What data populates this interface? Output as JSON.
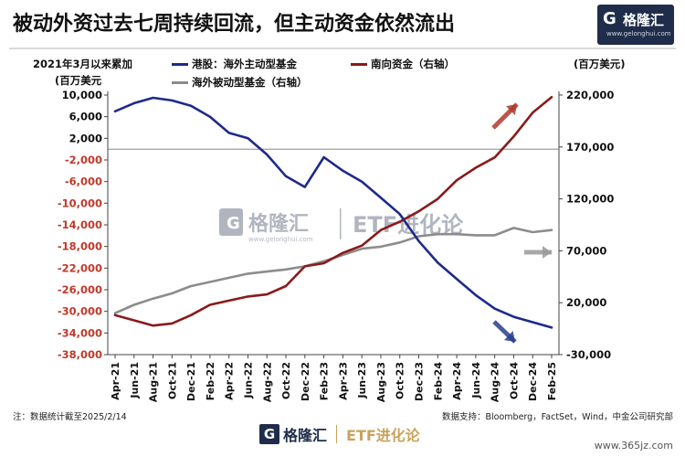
{
  "title": "被动外资过去七周持续回流，但主动资金依然流出",
  "logo": {
    "name": "格隆汇",
    "url": "www.gelonghui.com"
  },
  "left_unit": "(百万美元",
  "right_unit": "(百万美元)",
  "left_header": "2021年3月以来累加",
  "watermark": {
    "brand": "格隆汇",
    "url": "www.gelonghui.com",
    "text": "ETF进化论"
  },
  "bottom_logo": {
    "brand": "格隆汇",
    "text": "ETF进化论"
  },
  "note_left": "注：数据统计截至2025/2/14",
  "note_right": "数据支持：Bloomberg，FactSet，Wind，中金公司研究部",
  "site_watermark": "www.365jz.com",
  "colors": {
    "hk_active": "#1d2a8a",
    "southbound": "#8b1a1a",
    "passive": "#8c8c8c",
    "arrow_red": "#b03a2e",
    "arrow_blue": "#2a3f8f",
    "arrow_gray": "#9a9a9a"
  },
  "chart_data": {
    "type": "line",
    "x": [
      "Apr-21",
      "Jun-21",
      "Aug-21",
      "Oct-21",
      "Dec-21",
      "Feb-22",
      "Apr-22",
      "Jun-22",
      "Aug-22",
      "Oct-22",
      "Dec-22",
      "Feb-23",
      "Apr-23",
      "Jun-23",
      "Aug-23",
      "Oct-23",
      "Dec-23",
      "Feb-24",
      "Apr-24",
      "Jun-24",
      "Aug-24",
      "Oct-24",
      "Dec-24",
      "Feb-25"
    ],
    "left_axis": {
      "ylim": [
        -38000,
        10000
      ],
      "ticks": [
        10000,
        6000,
        2000,
        -2000,
        -6000,
        -10000,
        -14000,
        -18000,
        -22000,
        -26000,
        -30000,
        -34000,
        -38000
      ],
      "tick_labels": [
        "10,000",
        "6,000",
        "2,000",
        "-2,000",
        "-6,000",
        "-10,000",
        "-14,000",
        "-18,000",
        "-22,000",
        "-26,000",
        "-30,000",
        "-34,000",
        "-38,000"
      ]
    },
    "right_axis": {
      "ylim": [
        -30000,
        220000
      ],
      "ticks": [
        220000,
        170000,
        120000,
        70000,
        20000,
        -30000
      ],
      "tick_labels": [
        "220,000",
        "170,000",
        "120,000",
        "70,000",
        "20,000",
        "-30,000"
      ]
    },
    "series": [
      {
        "name": "港股：海外主动型基金",
        "axis": "left",
        "values": [
          7000,
          8500,
          9500,
          9000,
          8000,
          6000,
          3000,
          2000,
          -1000,
          -5000,
          -7000,
          -1500,
          -4000,
          -6000,
          -9000,
          -12000,
          -17000,
          -21000,
          -24000,
          -27000,
          -29500,
          -31000,
          -32000,
          -33000
        ]
      },
      {
        "name": "南向资金（右轴）",
        "axis": "right",
        "values": [
          8000,
          3000,
          -2000,
          0,
          8000,
          18000,
          22000,
          26000,
          28000,
          36000,
          55000,
          58000,
          68000,
          75000,
          90000,
          98000,
          108000,
          120000,
          138000,
          150000,
          160000,
          180000,
          203000,
          218000
        ]
      },
      {
        "name": "海外被动型基金（右轴）",
        "axis": "right",
        "values": [
          10000,
          18000,
          24000,
          29000,
          36000,
          40000,
          44000,
          48000,
          50000,
          52000,
          55000,
          60000,
          66000,
          72000,
          74000,
          78000,
          84000,
          86000,
          86000,
          85000,
          85000,
          92000,
          88000,
          90000
        ]
      }
    ],
    "grid": false,
    "legend": "top"
  }
}
